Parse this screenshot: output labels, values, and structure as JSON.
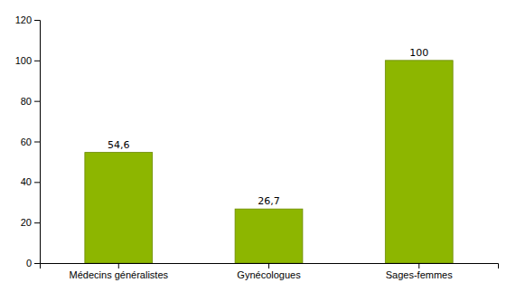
{
  "chart_data": {
    "type": "bar",
    "categories": [
      "Médecins généralistes",
      "Gynécologues",
      "Sages-femmes"
    ],
    "values": [
      54.6,
      26.7,
      100
    ],
    "value_labels": [
      "54,6",
      "26,7",
      "100"
    ],
    "data_labels": true,
    "color": "#8DB600",
    "ylim": [
      0,
      120
    ],
    "yticks": [
      0,
      20,
      40,
      60,
      80,
      100,
      120
    ],
    "grid": false
  }
}
